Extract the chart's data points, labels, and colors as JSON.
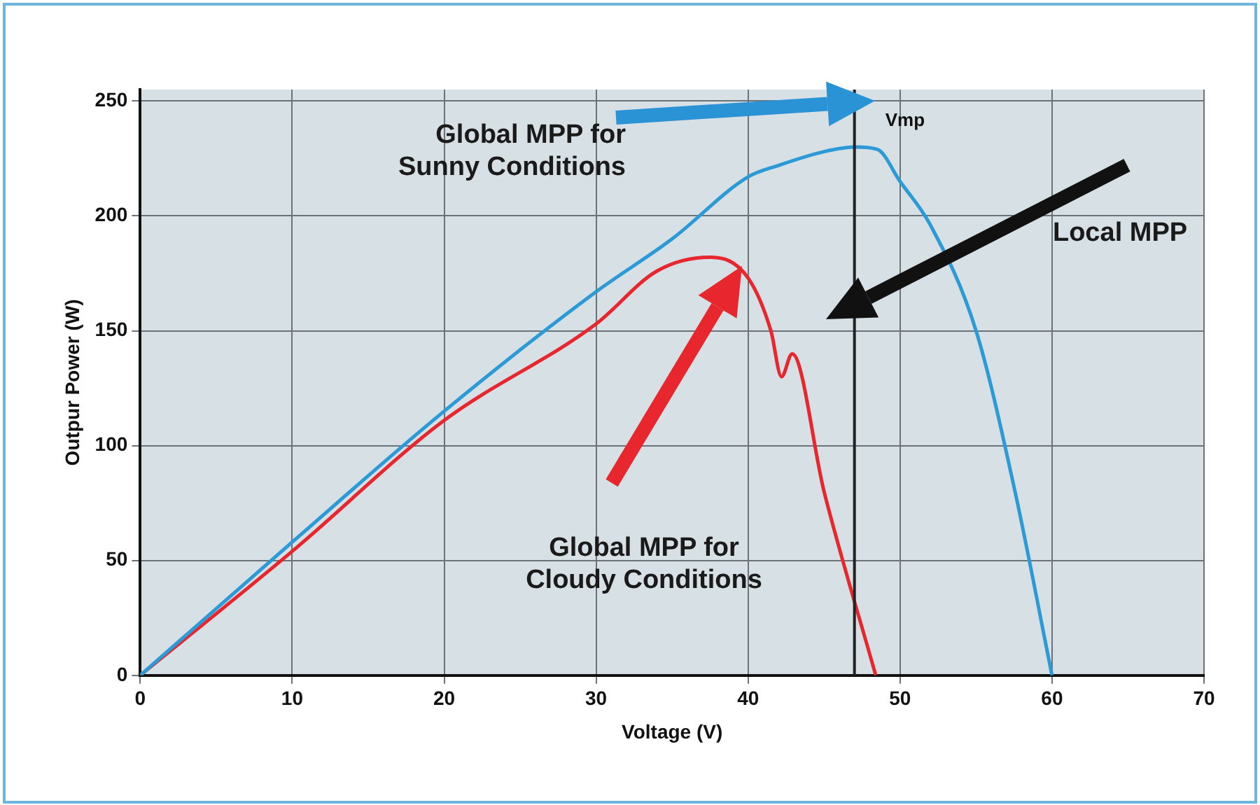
{
  "chart_data": {
    "type": "line",
    "xlabel": "Voltage (V)",
    "ylabel": "Outpur Power (W)",
    "xlim": [
      0,
      70
    ],
    "xticks": [
      0,
      10,
      20,
      30,
      40,
      50,
      60,
      70
    ],
    "ylim": [
      0,
      255
    ],
    "yticks": [
      0,
      50,
      100,
      150,
      200,
      250
    ],
    "grid": true,
    "legend": false,
    "marker": "none",
    "line_style": "solid",
    "series": [
      {
        "color": "#2b9ad6",
        "x": [
          0,
          10,
          20,
          30,
          35,
          40,
          42,
          45,
          47,
          48.5,
          50,
          52,
          55,
          57.5,
          60
        ],
        "values": [
          0,
          58,
          115,
          167,
          190,
          217,
          222,
          228,
          230,
          229,
          215,
          196,
          150,
          82,
          0
        ]
      },
      {
        "color": "#e8262e",
        "x": [
          0,
          10,
          20,
          30,
          34,
          37.5,
          40,
          41.5,
          42.2,
          42.9,
          45,
          48.4
        ],
        "values": [
          0,
          54,
          111,
          153,
          176,
          182,
          173,
          150,
          130,
          140,
          80,
          0
        ]
      }
    ],
    "ref_lines": [
      {
        "axis": "x",
        "value": 47,
        "label": "Vmp",
        "color": "#222222"
      }
    ],
    "annotations": [
      "Global MPP for\nSunny Conditions",
      "Local MPP",
      "Global MPP for\nCloudy Conditions"
    ]
  }
}
